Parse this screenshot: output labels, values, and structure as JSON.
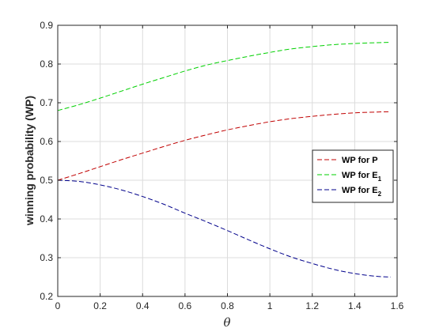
{
  "chart_data": {
    "type": "line",
    "xlabel": "θ",
    "ylabel": "winning probability (WP)",
    "xlim": [
      0,
      1.6
    ],
    "ylim": [
      0.2,
      0.9
    ],
    "xticks": [
      "0",
      "0.2",
      "0.4",
      "0.6",
      "0.8",
      "1",
      "1.2",
      "1.4",
      "1.6"
    ],
    "yticks": [
      "0.2",
      "0.3",
      "0.4",
      "0.5",
      "0.6",
      "0.7",
      "0.8",
      "0.9"
    ],
    "grid": true,
    "legend_position": "right",
    "x": [
      0,
      0.1,
      0.2,
      0.3,
      0.4,
      0.5,
      0.6,
      0.7,
      0.8,
      0.9,
      1.0,
      1.1,
      1.2,
      1.3,
      1.4,
      1.5,
      1.57
    ],
    "series": [
      {
        "name": "WP for P",
        "label_main": "WP for P",
        "label_sub": "",
        "color": "#c00000",
        "values": [
          0.5,
          0.517,
          0.535,
          0.553,
          0.57,
          0.587,
          0.603,
          0.617,
          0.63,
          0.641,
          0.651,
          0.659,
          0.665,
          0.67,
          0.674,
          0.676,
          0.677
        ]
      },
      {
        "name": "WP for E1",
        "label_main": "WP for E",
        "label_sub": "1",
        "color": "#00d000",
        "values": [
          0.68,
          0.695,
          0.712,
          0.73,
          0.748,
          0.765,
          0.782,
          0.797,
          0.809,
          0.82,
          0.83,
          0.839,
          0.845,
          0.85,
          0.853,
          0.855,
          0.856
        ]
      },
      {
        "name": "WP for E2",
        "label_main": "WP for E",
        "label_sub": "2",
        "color": "#00008b",
        "values": [
          0.5,
          0.497,
          0.488,
          0.475,
          0.458,
          0.438,
          0.415,
          0.393,
          0.37,
          0.346,
          0.323,
          0.302,
          0.285,
          0.27,
          0.259,
          0.252,
          0.25
        ]
      }
    ]
  }
}
